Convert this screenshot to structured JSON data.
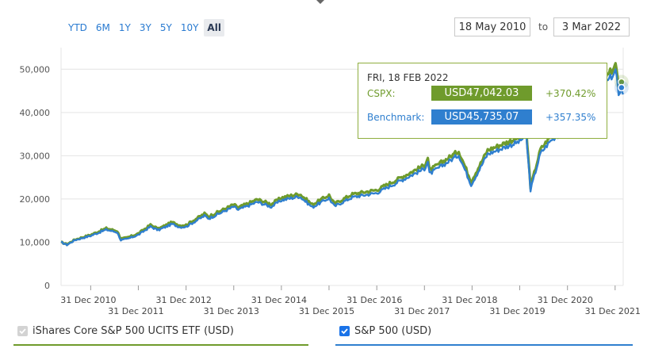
{
  "range_buttons": [
    "YTD",
    "6M",
    "1Y",
    "3Y",
    "5Y",
    "10Y",
    "All"
  ],
  "active_range": "All",
  "date_range": {
    "from": "18 May 2010",
    "to_label": "to",
    "to": "3 Mar 2022"
  },
  "tooltip": {
    "date": "FRI, 18 FEB 2022",
    "rows": [
      {
        "label": "CSPX:",
        "value": "USD47,042.03",
        "change": "+370.42%",
        "color": "#6f9b2c"
      },
      {
        "label": "Benchmark:",
        "value": "USD45,735.07",
        "change": "+357.35%",
        "color": "#2f7fcf"
      }
    ]
  },
  "legend": [
    {
      "label": "iShares Core S&P 500 UCITS ETF (USD)",
      "checked": true,
      "disabled": true,
      "color": "#6f9b2c"
    },
    {
      "label": "S&P 500 (USD)",
      "checked": true,
      "disabled": false,
      "color": "#2f7fcf"
    }
  ],
  "chart_data": {
    "type": "line",
    "y_ticks": [
      0,
      10000,
      20000,
      30000,
      40000,
      50000
    ],
    "y_tick_labels": [
      "0",
      "10,000",
      "20,000",
      "30,000",
      "40,000",
      "50,000"
    ],
    "ylim": [
      0,
      55000
    ],
    "x_range": [
      "2010-05-18",
      "2022-03-03"
    ],
    "x_ticks": [
      "2010-12-31",
      "2011-12-31",
      "2012-12-31",
      "2013-12-31",
      "2014-12-31",
      "2015-12-31",
      "2016-12-31",
      "2017-12-31",
      "2018-12-31",
      "2019-12-31",
      "2020-12-31",
      "2021-12-31"
    ],
    "x_tick_labels": [
      "31 Dec 2010",
      "31 Dec 2011",
      "31 Dec 2012",
      "31 Dec 2013",
      "31 Dec 2014",
      "31 Dec 2015",
      "31 Dec 2016",
      "31 Dec 2017",
      "31 Dec 2018",
      "31 Dec 2019",
      "31 Dec 2020",
      "31 Dec 2021"
    ],
    "grid": true,
    "series": [
      {
        "name": "iShares Core S&P 500 UCITS ETF (USD)",
        "color": "#6f9b2c",
        "x": [
          "2010-05-18",
          "2010-07-02",
          "2010-09-01",
          "2010-12-31",
          "2011-04-29",
          "2011-07-22",
          "2011-08-19",
          "2011-10-03",
          "2011-12-31",
          "2012-04-02",
          "2012-06-01",
          "2012-09-14",
          "2012-11-15",
          "2012-12-31",
          "2013-05-21",
          "2013-06-24",
          "2013-12-31",
          "2014-02-03",
          "2014-06-30",
          "2014-10-15",
          "2014-12-31",
          "2015-05-20",
          "2015-08-25",
          "2015-12-31",
          "2016-02-11",
          "2016-06-27",
          "2016-12-31",
          "2017-06-30",
          "2017-12-31",
          "2018-01-26",
          "2018-02-08",
          "2018-09-20",
          "2018-12-24",
          "2019-04-30",
          "2019-12-31",
          "2020-02-19",
          "2020-03-23",
          "2020-06-08",
          "2020-09-02",
          "2020-12-31",
          "2021-06-30",
          "2021-12-31",
          "2022-01-03",
          "2022-01-27",
          "2022-02-18",
          "2022-03-03"
        ],
        "y": [
          10000,
          9500,
          10600,
          11700,
          13200,
          12600,
          10800,
          11000,
          12000,
          14000,
          13100,
          14600,
          13900,
          14000,
          16600,
          16000,
          18700,
          18000,
          19900,
          18800,
          20300,
          21200,
          18700,
          20900,
          18900,
          21100,
          22100,
          24900,
          27800,
          29600,
          26600,
          31100,
          24100,
          31300,
          34300,
          35900,
          22800,
          31500,
          34800,
          37000,
          43500,
          50800,
          51000,
          45800,
          47042,
          45500
        ]
      },
      {
        "name": "S&P 500 (USD)",
        "color": "#2f7fcf",
        "x": [
          "2010-05-18",
          "2010-07-02",
          "2010-09-01",
          "2010-12-31",
          "2011-04-29",
          "2011-07-22",
          "2011-08-19",
          "2011-10-03",
          "2011-12-31",
          "2012-04-02",
          "2012-06-01",
          "2012-09-14",
          "2012-11-15",
          "2012-12-31",
          "2013-05-21",
          "2013-06-24",
          "2013-12-31",
          "2014-02-03",
          "2014-06-30",
          "2014-10-15",
          "2014-12-31",
          "2015-05-20",
          "2015-08-25",
          "2015-12-31",
          "2016-02-11",
          "2016-06-27",
          "2016-12-31",
          "2017-06-30",
          "2017-12-31",
          "2018-01-26",
          "2018-02-08",
          "2018-09-20",
          "2018-12-24",
          "2019-04-30",
          "2019-12-31",
          "2020-02-19",
          "2020-03-23",
          "2020-06-08",
          "2020-09-02",
          "2020-12-31",
          "2021-06-30",
          "2021-12-31",
          "2022-01-03",
          "2022-01-27",
          "2022-02-18",
          "2022-03-03"
        ],
        "y": [
          10000,
          9400,
          10500,
          11500,
          12900,
          12300,
          10500,
          10700,
          11700,
          13600,
          12800,
          14200,
          13500,
          13600,
          16100,
          15500,
          18200,
          17500,
          19300,
          18200,
          19700,
          20600,
          18100,
          20200,
          18300,
          20400,
          21400,
          24200,
          27000,
          28700,
          25800,
          30200,
          23300,
          30400,
          33300,
          34900,
          22100,
          30600,
          33800,
          36000,
          42300,
          49400,
          49600,
          44500,
          45735,
          44200
        ]
      }
    ]
  }
}
